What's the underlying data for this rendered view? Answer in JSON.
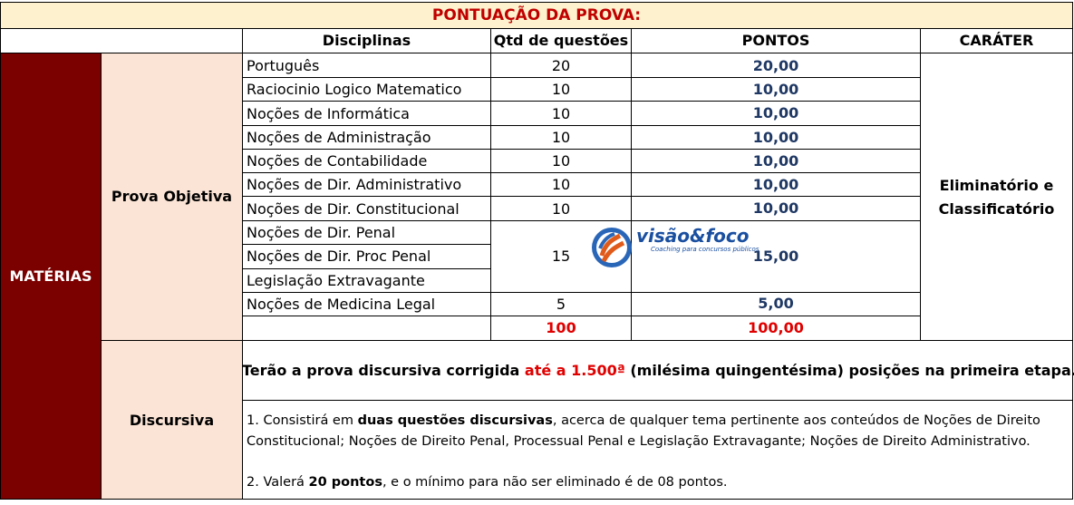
{
  "title": "PONTUAÇÃO DA PROVA:",
  "headers": {
    "disciplinas": "Disciplinas",
    "qtd": "Qtd de questões",
    "pontos": "PONTOS",
    "carater": "CARÁTER"
  },
  "materias_label": "MATÉRIAS",
  "objetiva_label": "Prova Objetiva",
  "discursiva_label": "Discursiva",
  "rows": [
    {
      "disciplina": "Português",
      "qtd": "20",
      "pontos": "20,00"
    },
    {
      "disciplina": "Raciocinio Logico Matematico",
      "qtd": "10",
      "pontos": "10,00"
    },
    {
      "disciplina": "Noções de Informática",
      "qtd": "10",
      "pontos": "10,00"
    },
    {
      "disciplina": "Noções de Administração",
      "qtd": "10",
      "pontos": "10,00"
    },
    {
      "disciplina": "Noções de Contabilidade",
      "qtd": "10",
      "pontos": "10,00"
    },
    {
      "disciplina": "Noções de Dir. Administrativo",
      "qtd": "10",
      "pontos": "10,00"
    },
    {
      "disciplina": "Noções de Dir. Constitucional",
      "qtd": "10",
      "pontos": "10,00"
    }
  ],
  "group": {
    "disciplinas": [
      "Noções de Dir. Penal",
      "Noções de Dir. Proc Penal",
      "Legislação Extravagante"
    ],
    "qtd": "15",
    "pontos": "15,00"
  },
  "last_row": {
    "disciplina": "Noções de Medicina Legal",
    "qtd": "5",
    "pontos": "5,00"
  },
  "totals": {
    "qtd": "100",
    "pontos": "100,00"
  },
  "carater_value_line1": "Eliminatório e",
  "carater_value_line2": "Classificatório",
  "discursiva_banner": {
    "before": "Terão a prova discursiva corrigida ",
    "highlight": "até a 1.500ª",
    "after": " (milésima quingentésima) posições na primeira etapa."
  },
  "discursiva_notes": {
    "p1_before": "1. Consistirá em ",
    "p1_bold": "duas questões discursivas",
    "p1_after_line1": ", acerca de qualquer tema pertinente aos conteúdos de Noções de Direito",
    "p1_line2": "Constitucional; Noções de Direito Penal, Processual Penal e Legislação Extravagante; Noções de Direito Administrativo.",
    "p2_before": "2. Valerá ",
    "p2_bold": "20 pontos",
    "p2_after": ", e o mínimo para não ser eliminado é de 08 pontos."
  },
  "logo": {
    "brand": "visão&foco",
    "tagline": "Coaching para concursos públicos"
  },
  "colors": {
    "title_bg": "#fdf2cd",
    "title_text": "#c00000",
    "materias_bg": "#7b0000",
    "label_bg": "#fbe4d5",
    "points_text": "#1f3864",
    "total_text": "#e00000"
  }
}
